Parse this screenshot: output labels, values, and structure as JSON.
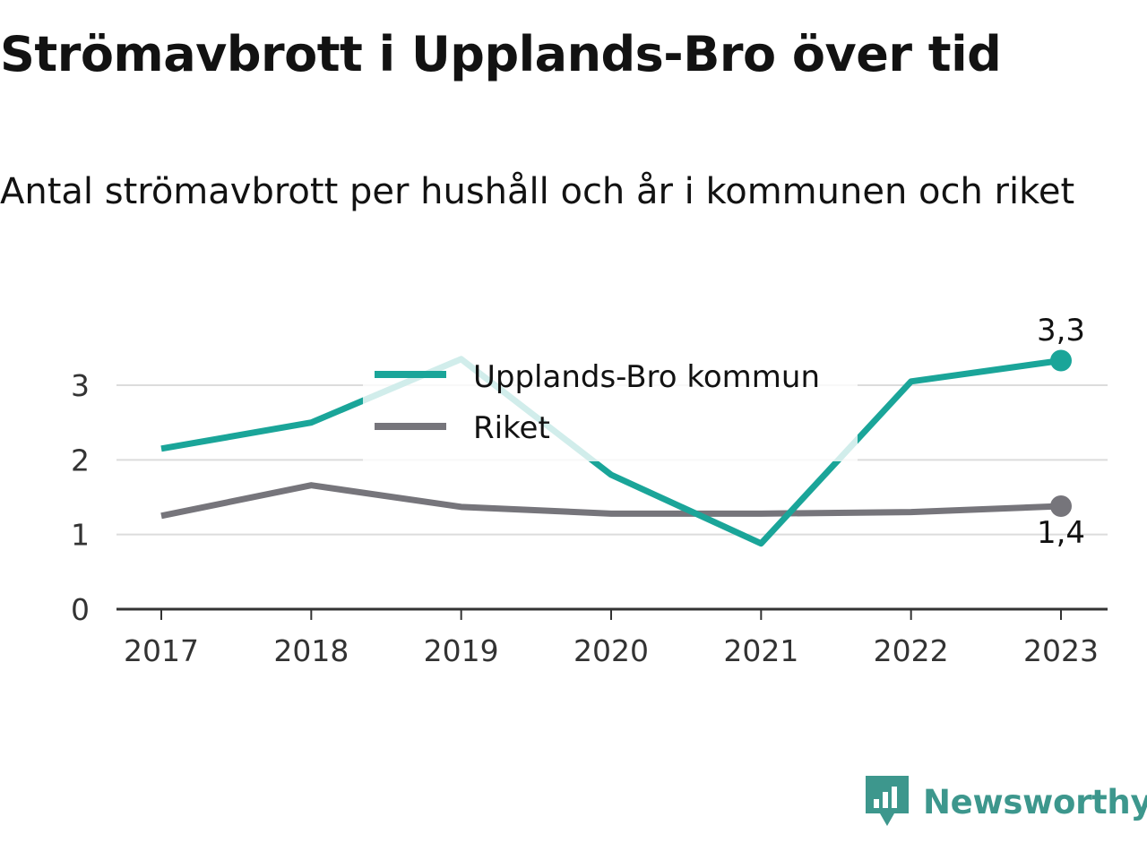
{
  "header": {
    "title": "Strömavbrott i Upplands-Bro över tid",
    "subtitle": "Antal strömavbrott per hushåll och år i kommunen och riket"
  },
  "brand": {
    "name": "Newsworthy",
    "icon": "newsworthy-logo-icon",
    "color": "#3d978d"
  },
  "chart_data": {
    "type": "line",
    "title": "Strömavbrott i Upplands-Bro över tid",
    "subtitle": "Antal strömavbrott per hushåll och år i kommunen och riket",
    "xlabel": "",
    "ylabel": "",
    "categories": [
      "2017",
      "2018",
      "2019",
      "2020",
      "2021",
      "2022",
      "2023"
    ],
    "ylim": [
      0,
      3.4
    ],
    "yticks": [
      0,
      1,
      2,
      3
    ],
    "ytick_labels": [
      "0",
      "1",
      "2",
      "3"
    ],
    "grid": "horizontal",
    "legend_position": "top-center",
    "series": [
      {
        "name": "Upplands-Bro kommun",
        "color": "#1aa599",
        "values": [
          2.15,
          2.5,
          3.35,
          1.8,
          0.88,
          3.05,
          3.33
        ],
        "end_label": "3,3"
      },
      {
        "name": "Riket",
        "color": "#76757b",
        "values": [
          1.25,
          1.66,
          1.37,
          1.28,
          1.28,
          1.3,
          1.38
        ],
        "end_label": "1,4"
      }
    ]
  }
}
